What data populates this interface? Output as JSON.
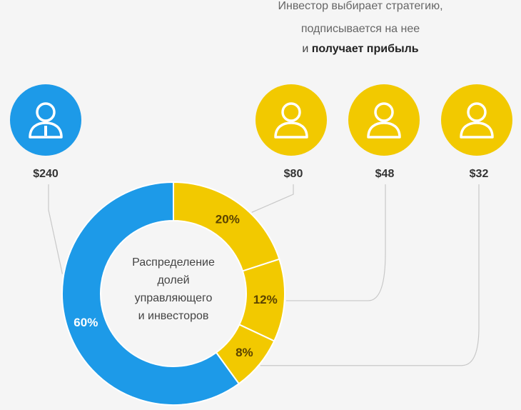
{
  "caption": {
    "line1": "Инвестор выбирает стратегию,",
    "line2": "подписывается на нее",
    "line3_prefix": "и",
    "line3_bold": "получает прибыль"
  },
  "colors": {
    "manager": "#1d9ae8",
    "investor": "#f2c900",
    "label_dark": "#5a4300",
    "label_light": "#ffffff",
    "connector": "#c8c8c8"
  },
  "icons": {
    "manager": "manager-user-icon",
    "investor": "investor-user-icon"
  },
  "chart_data": {
    "type": "pie",
    "donut": true,
    "center_label": [
      "Распределение",
      "долей",
      "управляющего",
      "и инвесторов"
    ],
    "slices": [
      {
        "label": "60%",
        "value": 60,
        "amount": "$240",
        "role": "manager"
      },
      {
        "label": "20%",
        "value": 20,
        "amount": "$80",
        "role": "investor"
      },
      {
        "label": "12%",
        "value": 12,
        "amount": "$48",
        "role": "investor"
      },
      {
        "label": "8%",
        "value": 8,
        "amount": "$32",
        "role": "investor"
      }
    ]
  }
}
